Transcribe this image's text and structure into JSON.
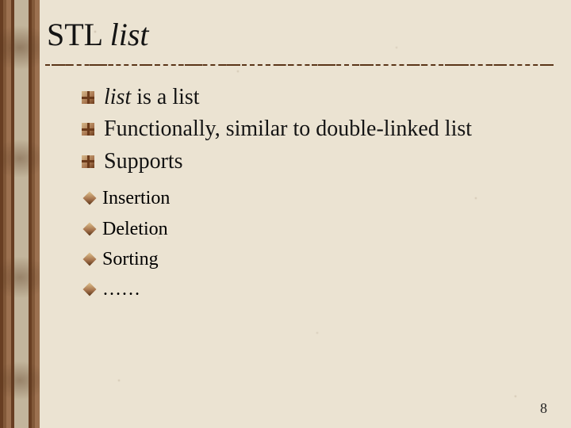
{
  "colors": {
    "background": "#ebe3d2",
    "text": "#141414",
    "bullet_dark": "#6b3a1a",
    "bullet_mid": "#a8764f",
    "bullet_light": "#d6b88a"
  },
  "typography": {
    "title_fontsize_pt": 30,
    "body_fontsize_pt": 21,
    "sub_fontsize_pt": 18,
    "font_family": "Times New Roman, serif"
  },
  "title": {
    "prefix": "STL ",
    "italic": "list"
  },
  "bullets": [
    {
      "italic_prefix": "list",
      "rest": " is a list"
    },
    {
      "text": "Functionally, similar to double-linked list"
    },
    {
      "text": "Supports"
    }
  ],
  "sub_bullets": [
    "Insertion",
    "Deletion",
    "Sorting",
    "……"
  ],
  "page_number": "8"
}
